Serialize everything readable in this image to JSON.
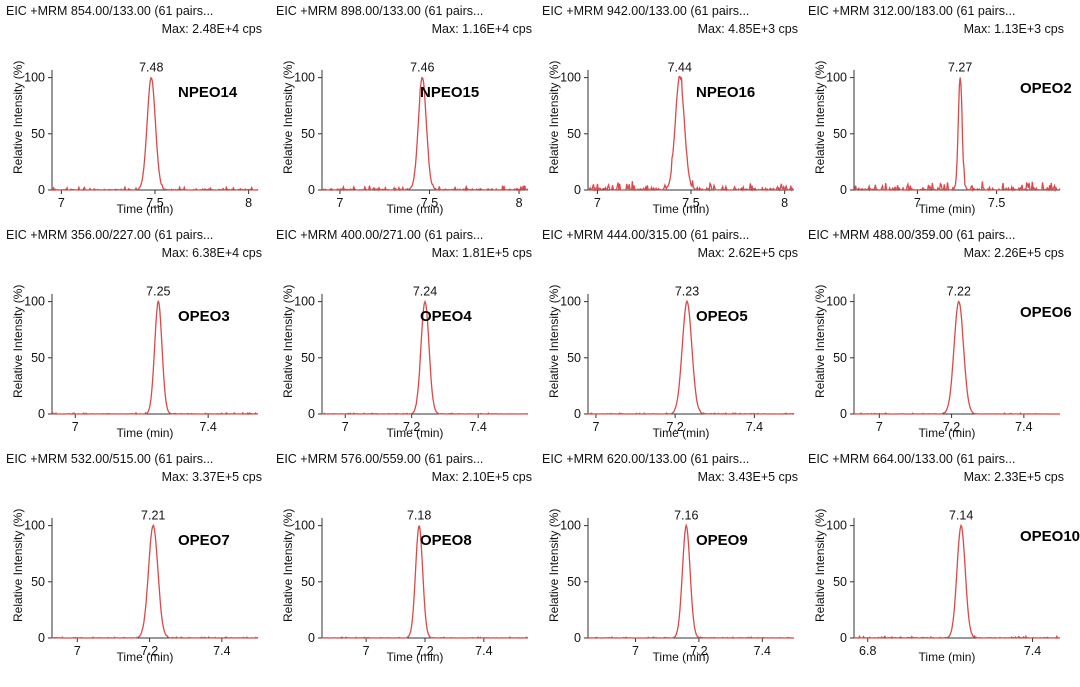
{
  "chart_data": [
    {
      "type": "line",
      "title": "EIC +MRM 854.00/133.00 (61 pairs...",
      "subtitle": "Max: 2.48E+4 cps",
      "compound": "NPEO14",
      "peak_label": "7.48",
      "peak_time": 7.48,
      "peak_width": 0.022,
      "xlim": [
        6.95,
        8.05
      ],
      "xticks": [
        7,
        7.5,
        8
      ],
      "xtick_labels": [
        "7",
        "7.5",
        "8"
      ],
      "ylim": [
        0,
        105
      ],
      "yticks": [
        0,
        50,
        100
      ],
      "ytick_labels": [
        "0",
        "50",
        "100"
      ],
      "xlabel": "Time (min)",
      "ylabel": "Relative Intensity (%)",
      "noise_level": 2.5
    },
    {
      "type": "line",
      "title": "EIC +MRM 898.00/133.00 (61 pairs...",
      "subtitle": "Max: 1.16E+4 cps",
      "compound": "NPEO15",
      "peak_label": "7.46",
      "peak_time": 7.46,
      "peak_width": 0.022,
      "xlim": [
        6.9,
        8.05
      ],
      "xticks": [
        7,
        7.5,
        8
      ],
      "xtick_labels": [
        "7",
        "7.5",
        "8"
      ],
      "ylim": [
        0,
        105
      ],
      "yticks": [
        0,
        50,
        100
      ],
      "ytick_labels": [
        "0",
        "50",
        "100"
      ],
      "xlabel": "Time (min)",
      "ylabel": "Relative Intensity (%)",
      "noise_level": 4
    },
    {
      "type": "line",
      "title": "EIC +MRM 942.00/133.00 (61 pairs...",
      "subtitle": "Max: 4.85E+3 cps",
      "compound": "NPEO16",
      "peak_label": "7.44",
      "peak_time": 7.44,
      "peak_width": 0.024,
      "xlim": [
        6.95,
        8.05
      ],
      "xticks": [
        7,
        7.5,
        8
      ],
      "xtick_labels": [
        "7",
        "7.5",
        "8"
      ],
      "ylim": [
        0,
        105
      ],
      "yticks": [
        0,
        50,
        100
      ],
      "ytick_labels": [
        "0",
        "50",
        "100"
      ],
      "xlabel": "Time (min)",
      "ylabel": "Relative Intensity (%)",
      "noise_level": 8
    },
    {
      "type": "line",
      "title": "EIC +MRM 312.00/183.00 (61 pairs...",
      "subtitle": "Max: 1.13E+3 cps",
      "compound": "OPEO2",
      "peak_label": "7.27",
      "peak_time": 7.27,
      "peak_width": 0.012,
      "xlim": [
        6.6,
        7.9
      ],
      "xticks": [
        7,
        7.5
      ],
      "xtick_labels": [
        "7",
        "7.5"
      ],
      "ylim": [
        0,
        105
      ],
      "yticks": [
        0,
        50,
        100
      ],
      "ytick_labels": [
        "0",
        "50",
        "100"
      ],
      "xlabel": "Time (min)",
      "ylabel": "Relative Intensity (%)",
      "noise_level": 8
    },
    {
      "type": "line",
      "title": "EIC +MRM 356.00/227.00 (61 pairs...",
      "subtitle": "Max: 6.38E+4 cps",
      "compound": "OPEO3",
      "peak_label": "7.25",
      "peak_time": 7.25,
      "peak_width": 0.011,
      "xlim": [
        6.93,
        7.55
      ],
      "xticks": [
        7,
        7.4
      ],
      "xtick_labels": [
        "7",
        "7.4"
      ],
      "ylim": [
        0,
        105
      ],
      "yticks": [
        0,
        50,
        100
      ],
      "ytick_labels": [
        "0",
        "50",
        "100"
      ],
      "xlabel": "Time (min)",
      "ylabel": "Relative Intensity (%)",
      "noise_level": 1
    },
    {
      "type": "line",
      "title": "EIC +MRM 400.00/271.00 (61 pairs...",
      "subtitle": "Max: 1.81E+5 cps",
      "compound": "OPEO4",
      "peak_label": "7.24",
      "peak_time": 7.24,
      "peak_width": 0.012,
      "xlim": [
        6.93,
        7.55
      ],
      "xticks": [
        7,
        7.2,
        7.4
      ],
      "xtick_labels": [
        "7",
        "7.2",
        "7.4"
      ],
      "ylim": [
        0,
        105
      ],
      "yticks": [
        0,
        50,
        100
      ],
      "ytick_labels": [
        "0",
        "50",
        "100"
      ],
      "xlabel": "Time (min)",
      "ylabel": "Relative Intensity (%)",
      "noise_level": 0.8
    },
    {
      "type": "line",
      "title": "EIC +MRM 444.00/315.00 (61 pairs...",
      "subtitle": "Max: 2.62E+5 cps",
      "compound": "OPEO5",
      "peak_label": "7.23",
      "peak_time": 7.23,
      "peak_width": 0.012,
      "xlim": [
        6.98,
        7.5
      ],
      "xticks": [
        7,
        7.2,
        7.4
      ],
      "xtick_labels": [
        "7",
        "7.2",
        "7.4"
      ],
      "ylim": [
        0,
        105
      ],
      "yticks": [
        0,
        50,
        100
      ],
      "ytick_labels": [
        "0",
        "50",
        "100"
      ],
      "xlabel": "Time (min)",
      "ylabel": "Relative Intensity (%)",
      "noise_level": 0.8
    },
    {
      "type": "line",
      "title": "EIC +MRM 488.00/359.00 (61 pairs...",
      "subtitle": "Max: 2.26E+5 cps",
      "compound": "OPEO6",
      "peak_label": "7.22",
      "peak_time": 7.22,
      "peak_width": 0.013,
      "xlim": [
        6.93,
        7.5
      ],
      "xticks": [
        7,
        7.2,
        7.4
      ],
      "xtick_labels": [
        "7",
        "7.2",
        "7.4"
      ],
      "ylim": [
        0,
        105
      ],
      "yticks": [
        0,
        50,
        100
      ],
      "ytick_labels": [
        "0",
        "50",
        "100"
      ],
      "xlabel": "Time (min)",
      "ylabel": "Relative Intensity (%)",
      "noise_level": 0.8
    },
    {
      "type": "line",
      "title": "EIC +MRM 532.00/515.00 (61 pairs...",
      "subtitle": "Max: 3.37E+5 cps",
      "compound": "OPEO7",
      "peak_label": "7.21",
      "peak_time": 7.21,
      "peak_width": 0.013,
      "xlim": [
        6.93,
        7.5
      ],
      "xticks": [
        7,
        7.2,
        7.4
      ],
      "xtick_labels": [
        "7",
        "7.2",
        "7.4"
      ],
      "ylim": [
        0,
        105
      ],
      "yticks": [
        0,
        50,
        100
      ],
      "ytick_labels": [
        "0",
        "50",
        "100"
      ],
      "xlabel": "Time (min)",
      "ylabel": "Relative Intensity (%)",
      "noise_level": 0.8
    },
    {
      "type": "line",
      "title": "EIC +MRM 576.00/559.00 (61 pairs...",
      "subtitle": "Max: 2.10E+5 cps",
      "compound": "OPEO8",
      "peak_label": "7.18",
      "peak_time": 7.18,
      "peak_width": 0.012,
      "xlim": [
        6.85,
        7.55
      ],
      "xticks": [
        7,
        7.2,
        7.4
      ],
      "xtick_labels": [
        "7",
        "7.2",
        "7.4"
      ],
      "ylim": [
        0,
        105
      ],
      "yticks": [
        0,
        50,
        100
      ],
      "ytick_labels": [
        "0",
        "50",
        "100"
      ],
      "xlabel": "Time (min)",
      "ylabel": "Relative Intensity (%)",
      "noise_level": 0.8
    },
    {
      "type": "line",
      "title": "EIC +MRM 620.00/133.00 (61 pairs...",
      "subtitle": "Max: 3.43E+5 cps",
      "compound": "OPEO9",
      "peak_label": "7.16",
      "peak_time": 7.16,
      "peak_width": 0.012,
      "xlim": [
        6.85,
        7.5
      ],
      "xticks": [
        7,
        7.2,
        7.4
      ],
      "xtick_labels": [
        "7",
        "7.2",
        "7.4"
      ],
      "ylim": [
        0,
        105
      ],
      "yticks": [
        0,
        50,
        100
      ],
      "ytick_labels": [
        "0",
        "50",
        "100"
      ],
      "xlabel": "Time (min)",
      "ylabel": "Relative Intensity (%)",
      "noise_level": 0.8
    },
    {
      "type": "line",
      "title": "EIC +MRM 664.00/133.00 (61 pairs...",
      "subtitle": "Max: 2.33E+5 cps",
      "compound": "OPEO10",
      "peak_label": "7.14",
      "peak_time": 7.14,
      "peak_width": 0.015,
      "xlim": [
        6.75,
        7.5
      ],
      "xticks": [
        6.8,
        7.4
      ],
      "xtick_labels": [
        "6.8",
        "7.4"
      ],
      "ylim": [
        0,
        105
      ],
      "yticks": [
        0,
        50,
        100
      ],
      "ytick_labels": [
        "0",
        "50",
        "100"
      ],
      "xlabel": "Time (min)",
      "ylabel": "Relative Intensity (%)",
      "noise_level": 1.5
    }
  ],
  "colors": {
    "trace": "#d94a4a",
    "axis": "#333333",
    "text": "#111111"
  }
}
